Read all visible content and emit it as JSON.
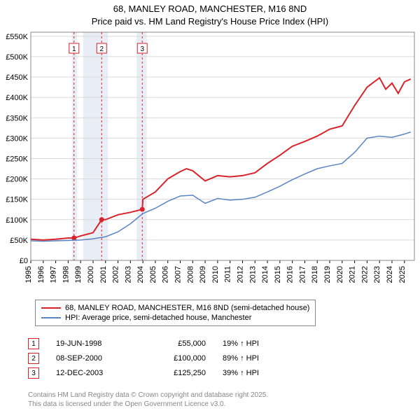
{
  "title_line1": "68, MANLEY ROAD, MANCHESTER, M16 8ND",
  "title_line2": "Price paid vs. HM Land Registry's House Price Index (HPI)",
  "chart": {
    "type": "line",
    "background_color": "#ffffff",
    "grid_color": "#d9d9d9",
    "shade_color": "#e9edf5",
    "series_colors": {
      "price_paid": "#d8232a",
      "hpi": "#5b84c4"
    },
    "line_width_price": 2.0,
    "line_width_hpi": 1.5,
    "marker_color": "#d8232a",
    "marker_box_border": "#d8232a",
    "marker_dash_color": "#d8232a",
    "x": {
      "min": 1995,
      "max": 2025.8,
      "tick_step": 1,
      "tick_rotation_deg": -90
    },
    "y": {
      "min": 0,
      "max": 560000,
      "tick_step": 50000,
      "tick_format": "£K"
    },
    "shaded_ranges": [
      {
        "from": 1998.3,
        "to": 1998.7
      },
      {
        "from": 1999.2,
        "to": 2001.2
      },
      {
        "from": 2003.5,
        "to": 2004.3
      }
    ],
    "markers": [
      {
        "n": "1",
        "x": 1998.47,
        "y": 55000
      },
      {
        "n": "2",
        "x": 2000.69,
        "y": 100000
      },
      {
        "n": "3",
        "x": 2003.95,
        "y": 125250
      }
    ],
    "series": {
      "price_paid": [
        {
          "x": 1995.0,
          "y": 52000
        },
        {
          "x": 1996.0,
          "y": 50000
        },
        {
          "x": 1997.0,
          "y": 52000
        },
        {
          "x": 1998.0,
          "y": 55000
        },
        {
          "x": 1998.47,
          "y": 55000
        },
        {
          "x": 1999.0,
          "y": 60000
        },
        {
          "x": 2000.0,
          "y": 68000
        },
        {
          "x": 2000.69,
          "y": 100000
        },
        {
          "x": 2001.0,
          "y": 100000
        },
        {
          "x": 2002.0,
          "y": 112000
        },
        {
          "x": 2003.0,
          "y": 118000
        },
        {
          "x": 2003.95,
          "y": 125250
        },
        {
          "x": 2004.0,
          "y": 150000
        },
        {
          "x": 2005.0,
          "y": 168000
        },
        {
          "x": 2006.0,
          "y": 200000
        },
        {
          "x": 2007.0,
          "y": 218000
        },
        {
          "x": 2007.5,
          "y": 225000
        },
        {
          "x": 2008.0,
          "y": 220000
        },
        {
          "x": 2009.0,
          "y": 195000
        },
        {
          "x": 2010.0,
          "y": 208000
        },
        {
          "x": 2011.0,
          "y": 205000
        },
        {
          "x": 2012.0,
          "y": 208000
        },
        {
          "x": 2013.0,
          "y": 215000
        },
        {
          "x": 2014.0,
          "y": 238000
        },
        {
          "x": 2015.0,
          "y": 258000
        },
        {
          "x": 2016.0,
          "y": 280000
        },
        {
          "x": 2017.0,
          "y": 292000
        },
        {
          "x": 2018.0,
          "y": 305000
        },
        {
          "x": 2019.0,
          "y": 322000
        },
        {
          "x": 2020.0,
          "y": 330000
        },
        {
          "x": 2021.0,
          "y": 380000
        },
        {
          "x": 2022.0,
          "y": 425000
        },
        {
          "x": 2023.0,
          "y": 448000
        },
        {
          "x": 2023.5,
          "y": 420000
        },
        {
          "x": 2024.0,
          "y": 435000
        },
        {
          "x": 2024.5,
          "y": 410000
        },
        {
          "x": 2025.0,
          "y": 438000
        },
        {
          "x": 2025.5,
          "y": 445000
        }
      ],
      "hpi": [
        {
          "x": 1995.0,
          "y": 48000
        },
        {
          "x": 1996.0,
          "y": 47000
        },
        {
          "x": 1997.0,
          "y": 48000
        },
        {
          "x": 1998.0,
          "y": 49000
        },
        {
          "x": 1999.0,
          "y": 50000
        },
        {
          "x": 2000.0,
          "y": 53000
        },
        {
          "x": 2001.0,
          "y": 58000
        },
        {
          "x": 2002.0,
          "y": 70000
        },
        {
          "x": 2003.0,
          "y": 90000
        },
        {
          "x": 2004.0,
          "y": 115000
        },
        {
          "x": 2005.0,
          "y": 128000
        },
        {
          "x": 2006.0,
          "y": 145000
        },
        {
          "x": 2007.0,
          "y": 158000
        },
        {
          "x": 2008.0,
          "y": 160000
        },
        {
          "x": 2009.0,
          "y": 140000
        },
        {
          "x": 2010.0,
          "y": 152000
        },
        {
          "x": 2011.0,
          "y": 148000
        },
        {
          "x": 2012.0,
          "y": 150000
        },
        {
          "x": 2013.0,
          "y": 155000
        },
        {
          "x": 2014.0,
          "y": 168000
        },
        {
          "x": 2015.0,
          "y": 182000
        },
        {
          "x": 2016.0,
          "y": 198000
        },
        {
          "x": 2017.0,
          "y": 212000
        },
        {
          "x": 2018.0,
          "y": 225000
        },
        {
          "x": 2019.0,
          "y": 232000
        },
        {
          "x": 2020.0,
          "y": 238000
        },
        {
          "x": 2021.0,
          "y": 265000
        },
        {
          "x": 2022.0,
          "y": 300000
        },
        {
          "x": 2023.0,
          "y": 305000
        },
        {
          "x": 2024.0,
          "y": 302000
        },
        {
          "x": 2025.0,
          "y": 310000
        },
        {
          "x": 2025.5,
          "y": 315000
        }
      ]
    }
  },
  "legend": {
    "items": [
      {
        "color": "#d8232a",
        "label": "68, MANLEY ROAD, MANCHESTER, M16 8ND (semi-detached house)"
      },
      {
        "color": "#5b84c4",
        "label": "HPI: Average price, semi-detached house, Manchester"
      }
    ]
  },
  "marker_table": [
    {
      "n": "1",
      "date": "19-JUN-1998",
      "price": "£55,000",
      "pct": "19% ↑ HPI"
    },
    {
      "n": "2",
      "date": "08-SEP-2000",
      "price": "£100,000",
      "pct": "89% ↑ HPI"
    },
    {
      "n": "3",
      "date": "12-DEC-2003",
      "price": "£125,250",
      "pct": "39% ↑ HPI"
    }
  ],
  "footer_line1": "Contains HM Land Registry data © Crown copyright and database right 2025.",
  "footer_line2": "This data is licensed under the Open Government Licence v3.0."
}
